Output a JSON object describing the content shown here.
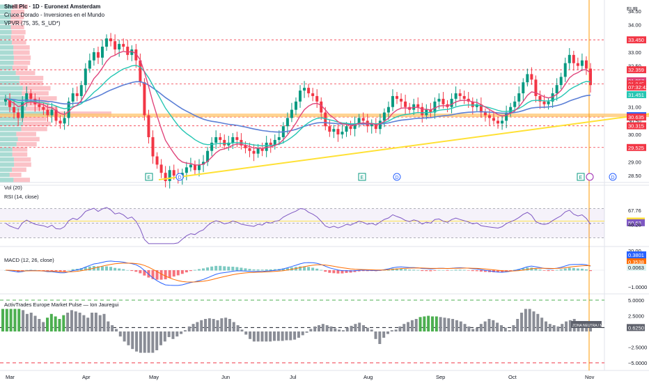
{
  "header": {
    "title": "Shell Plc · 1D · Euronext Amsterdam",
    "indicator1": "Cruce Dorado - Inversiones en el Mundo",
    "indicator2": "VPVR (75, 35, S_UD*)",
    "currency": "EUR"
  },
  "panes": {
    "vol_title": "Vol (20)",
    "rsi_title": "RSI (14, close)",
    "macd_title": "MACD (12, 26, close)",
    "pulse_title": "ActivTrades Europe Market Pulse — Ion Jauregui",
    "pulse_tag": "ZONA NEUTRA / MIXTA"
  },
  "colors": {
    "up": "#089981",
    "down": "#f23645",
    "ema_fast": "#e0457b",
    "ema_mid": "#26c6b3",
    "ema_slow": "#5b7fd6",
    "trend": "#ffe135",
    "poc": "#ffc46b",
    "rsi": "#7e57c2",
    "macd": "#2962ff",
    "signal": "#ff6d00",
    "gray": "#787b86",
    "green": "#4caf50",
    "red_dash": "#f23645"
  },
  "chart_data": [
    {
      "type": "candlestick",
      "title": "Shell Plc · 1D · Euronext Amsterdam",
      "x_labels": [
        "Mar",
        "Apr",
        "May",
        "Jun",
        "Jul",
        "Aug",
        "Sep",
        "Oct",
        "Nov"
      ],
      "y_ticks": [
        34.5,
        34.0,
        33.5,
        33.0,
        32.5,
        32.0,
        31.5,
        31.0,
        30.5,
        30.0,
        29.5,
        29.0,
        28.5
      ],
      "ylim": [
        28.25,
        34.75
      ],
      "price_tags": [
        {
          "label": "High",
          "value": "33.525",
          "color": "none"
        },
        {
          "label": "",
          "value": "33.450",
          "color": "#f23645"
        },
        {
          "label": "",
          "value": "32.359",
          "color": "#f23645"
        },
        {
          "label": "",
          "value": "31.957",
          "color": "#e0457b"
        },
        {
          "label": "",
          "value": "31.845",
          "color": "#f23645"
        },
        {
          "label": "",
          "value": "07:32:42",
          "color": "#f23645"
        },
        {
          "label": "",
          "value": "31.451",
          "color": "#26c6b3"
        },
        {
          "label": "",
          "value": "30.685",
          "color": "#2962ff"
        },
        {
          "label": "",
          "value": "30.635",
          "color": "#f23645"
        },
        {
          "label": "",
          "value": "30.315",
          "color": "#f23645"
        },
        {
          "label": "",
          "value": "29.525",
          "color": "#f23645"
        }
      ],
      "horizontal_levels": [
        33.45,
        32.359,
        31.845,
        30.635,
        30.315,
        29.525
      ],
      "poc_level": 30.685,
      "event_markers": [
        {
          "type": "E",
          "date_label": "May"
        },
        {
          "type": "D",
          "date_label": "May"
        },
        {
          "type": "E",
          "date_label": "Aug"
        },
        {
          "type": "D",
          "date_label": "Aug"
        },
        {
          "type": "E",
          "date_label": "Oct"
        },
        {
          "type": "D",
          "date_label": "Nov"
        }
      ],
      "closes": [
        31.3,
        31.0,
        30.8,
        30.6,
        31.2,
        31.5,
        31.3,
        31.1,
        31.0,
        30.9,
        30.7,
        30.9,
        30.5,
        30.4,
        30.6,
        31.2,
        31.5,
        31.4,
        31.8,
        32.4,
        32.7,
        33.0,
        32.8,
        33.2,
        33.5,
        33.4,
        33.1,
        33.3,
        33.2,
        32.9,
        33.1,
        32.7,
        31.9,
        30.7,
        29.9,
        29.2,
        28.9,
        28.6,
        28.3,
        28.7,
        28.5,
        28.4,
        28.6,
        28.8,
        28.9,
        28.7,
        28.9,
        29.0,
        29.4,
        29.7,
        29.9,
        29.8,
        29.6,
        29.7,
        29.9,
        29.8,
        29.6,
        29.5,
        29.4,
        29.3,
        29.5,
        29.4,
        29.7,
        29.6,
        29.8,
        29.9,
        30.3,
        30.6,
        30.9,
        31.2,
        31.6,
        31.7,
        31.5,
        31.4,
        31.2,
        30.8,
        30.3,
        30.1,
        30.2,
        30.0,
        30.1,
        30.3,
        30.2,
        30.4,
        30.6,
        30.5,
        30.3,
        30.4,
        30.2,
        30.5,
        30.8,
        31.0,
        31.4,
        31.3,
        31.2,
        31.0,
        30.9,
        31.1,
        31.0,
        30.7,
        30.9,
        30.8,
        31.2,
        31.3,
        31.1,
        31.0,
        31.3,
        31.5,
        31.4,
        31.3,
        31.2,
        31.0,
        31.1,
        30.8,
        30.7,
        30.6,
        30.5,
        30.4,
        30.5,
        30.8,
        31.0,
        31.2,
        31.5,
        31.9,
        32.2,
        32.0,
        31.4,
        31.2,
        31.1,
        31.2,
        31.5,
        31.8,
        32.1,
        32.6,
        32.9,
        32.6,
        32.5,
        32.7,
        32.4,
        31.8
      ],
      "volume_profile_note": "VPVR histogram on left edge"
    },
    {
      "type": "line",
      "title": "RSI (14, close)",
      "y_ticks": [
        67.76,
        52.9,
        50.63,
        48.26
      ],
      "reference_lines": [
        70,
        50,
        30
      ],
      "ylim": [
        20,
        80
      ]
    },
    {
      "type": "bar",
      "title": "MACD (12, 26, close)",
      "y_ticks": [
        20.0,
        0.3801,
        0.3538,
        0.0063,
        -1.0
      ],
      "tags": [
        {
          "value": "0.3801",
          "color": "#2962ff"
        },
        {
          "value": "0.3538",
          "color": "#ff6d00"
        },
        {
          "value": "0.0063",
          "color": "#e0f2f1"
        }
      ]
    },
    {
      "type": "bar",
      "title": "ActivTrades Europe Market Pulse — Ion Jauregui",
      "y_ticks": [
        5.0,
        2.5,
        0.625,
        -2.5,
        -5.0
      ],
      "tag_value": "0.6250",
      "bars": [
        3.6,
        3.6,
        3.6,
        3.6,
        3.6,
        3.4,
        2.8,
        3.0,
        2.5,
        2.0,
        1.5,
        2.2,
        2.8,
        2.4,
        2.0,
        2.6,
        3.0,
        3.4,
        3.2,
        3.0,
        2.6,
        2.2,
        3.0,
        3.0,
        2.6,
        2.8,
        1.6,
        1.0,
        0.4,
        -0.8,
        -1.6,
        -2.2,
        -2.8,
        -3.2,
        -3.4,
        -3.4,
        -3.4,
        -3.4,
        -3.0,
        -2.2,
        -1.6,
        -0.9,
        -1.2,
        -0.8,
        -0.4,
        0.2,
        0.8,
        1.2,
        1.5,
        1.8,
        2.0,
        2.1,
        2.0,
        1.8,
        2.1,
        2.2,
        2.0,
        1.5,
        1.0,
        0.3,
        -0.5,
        -1.2,
        -1.6,
        -1.6,
        -1.6,
        -1.6,
        -1.6,
        -1.5,
        -1.5,
        -1.5,
        -1.4,
        -1.4,
        -1.3,
        -1.0,
        -0.6,
        -0.2,
        0.4,
        0.8,
        1.0,
        1.2,
        1.0,
        0.8,
        0.5,
        0.3,
        0.2,
        0.6,
        0.9,
        1.2,
        1.4,
        1.0,
        0.6,
        0.3,
        -1.2,
        -2.0,
        -1.0,
        -0.4,
        0.2,
        0.3,
        0.8,
        1.2,
        1.5,
        1.8,
        2.0,
        2.3,
        2.4,
        2.5,
        2.4,
        2.4,
        2.3,
        2.2,
        2.1,
        2.0,
        1.8,
        1.6,
        1.2,
        0.8,
        0.4,
        0.6,
        1.2,
        1.6,
        2.0,
        1.8,
        1.4,
        1.0,
        0.6,
        0.2,
        1.0,
        2.0,
        3.0,
        3.6,
        3.6,
        3.2,
        2.8,
        2.2,
        1.6,
        1.2,
        1.0,
        0.8,
        1.2,
        1.6,
        1.8,
        2.0,
        1.6,
        1.2,
        0.8,
        0.6
      ],
      "green_bars": [
        0,
        1,
        2,
        3,
        4,
        11,
        12,
        13,
        14,
        15,
        103,
        104,
        105,
        106,
        107
      ],
      "levels": [
        5.0,
        0.625,
        -5.0
      ]
    }
  ],
  "x_axis": [
    "Mar",
    "Apr",
    "May",
    "Jun",
    "Jul",
    "Aug",
    "Sep",
    "Oct",
    "Nov"
  ]
}
